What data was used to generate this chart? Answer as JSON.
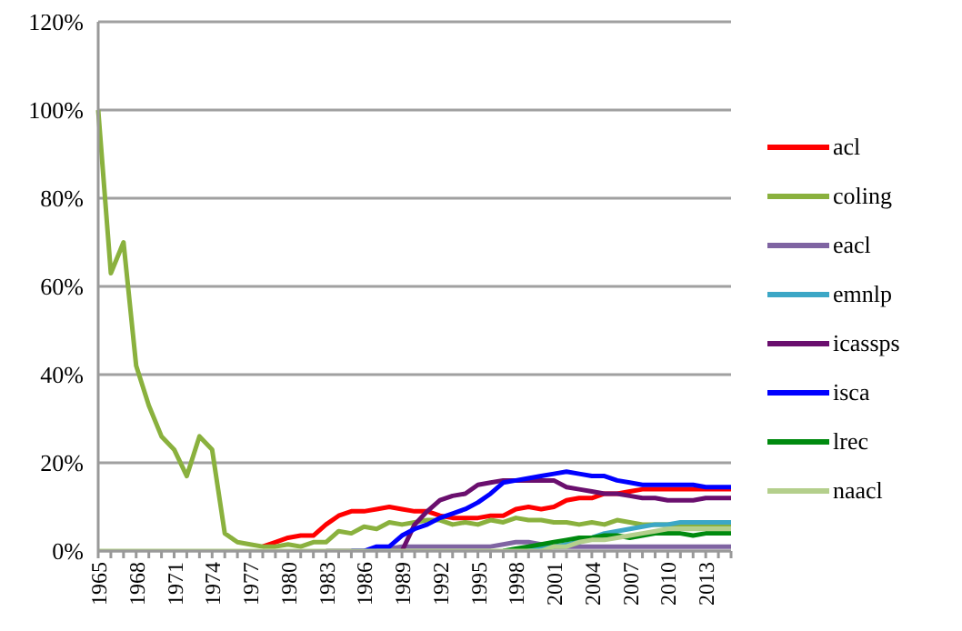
{
  "chart_data": {
    "type": "line",
    "categories": [
      "1965",
      null,
      null,
      "1968",
      null,
      null,
      "1971",
      null,
      null,
      "1974",
      null,
      null,
      "1977",
      null,
      null,
      "1980",
      null,
      null,
      "1983",
      null,
      null,
      "1986",
      null,
      null,
      "1989",
      null,
      null,
      "1992",
      null,
      null,
      "1995",
      null,
      null,
      "1998",
      null,
      null,
      "2001",
      null,
      null,
      "2004",
      null,
      null,
      "2007",
      null,
      null,
      "2010",
      null,
      null,
      "2013",
      null,
      null
    ],
    "ylim": [
      0,
      1.2
    ],
    "yticks": [
      {
        "value": 0,
        "label": "0%"
      },
      {
        "value": 0.2,
        "label": "20%"
      },
      {
        "value": 0.4,
        "label": "40%"
      },
      {
        "value": 0.6,
        "label": "60%"
      },
      {
        "value": 0.8,
        "label": "80%"
      },
      {
        "value": 1,
        "label": "100%"
      },
      {
        "value": 1.2,
        "label": "120%"
      }
    ],
    "grid": "y",
    "legend": "right",
    "series": [
      {
        "name": "acl",
        "color": "#ff0000",
        "values": [
          null,
          null,
          null,
          null,
          null,
          null,
          null,
          null,
          null,
          null,
          null,
          null,
          null,
          0.01,
          0.02,
          0.03,
          0.035,
          0.035,
          0.06,
          0.08,
          0.09,
          0.09,
          0.095,
          0.1,
          0.095,
          0.09,
          0.09,
          0.08,
          0.075,
          0.075,
          0.075,
          0.08,
          0.08,
          0.095,
          0.1,
          0.095,
          0.1,
          0.115,
          0.12,
          0.12,
          0.13,
          0.13,
          0.135,
          0.14,
          0.14,
          0.14,
          0.14,
          0.14,
          0.14,
          0.14,
          0.14
        ]
      },
      {
        "name": "coling",
        "color": "#8ab13e",
        "values": [
          1,
          0.63,
          0.7,
          0.42,
          0.33,
          0.26,
          0.23,
          0.17,
          0.26,
          0.23,
          0.04,
          0.02,
          0.015,
          0.01,
          0.01,
          0.015,
          0.01,
          0.02,
          0.02,
          0.045,
          0.04,
          0.055,
          0.05,
          0.065,
          0.06,
          0.065,
          0.07,
          0.07,
          0.06,
          0.065,
          0.06,
          0.07,
          0.065,
          0.075,
          0.07,
          0.07,
          0.065,
          0.065,
          0.06,
          0.065,
          0.06,
          0.07,
          0.065,
          0.06,
          0.06,
          0.06,
          0.06,
          0.06,
          0.06,
          0.06,
          0.06
        ]
      },
      {
        "name": "eacl",
        "color": "#7f64a2",
        "values": [
          null,
          null,
          null,
          null,
          null,
          null,
          null,
          null,
          null,
          null,
          null,
          null,
          null,
          null,
          null,
          null,
          null,
          null,
          0,
          0,
          0,
          0,
          0.005,
          0.005,
          0.01,
          0.01,
          0.01,
          0.01,
          0.01,
          0.01,
          0.01,
          0.01,
          0.015,
          0.02,
          0.02,
          0.015,
          0.01,
          0.01,
          0.01,
          0.01,
          0.01,
          0.01,
          0.01,
          0.01,
          0.01,
          0.01,
          0.01,
          0.01,
          0.01,
          0.01,
          0.01
        ]
      },
      {
        "name": "emnlp",
        "color": "#3ca7c6",
        "values": [
          null,
          null,
          null,
          null,
          null,
          null,
          null,
          null,
          null,
          null,
          null,
          null,
          null,
          null,
          null,
          null,
          null,
          null,
          null,
          null,
          null,
          null,
          null,
          null,
          null,
          null,
          null,
          null,
          null,
          null,
          null,
          null,
          null,
          0.005,
          0.005,
          0.01,
          0.01,
          0.015,
          0.02,
          0.03,
          0.04,
          0.045,
          0.05,
          0.055,
          0.06,
          0.06,
          0.065,
          0.065,
          0.065,
          0.065,
          0.065
        ]
      },
      {
        "name": "icassps",
        "color": "#6a0f6e",
        "values": [
          null,
          null,
          null,
          null,
          null,
          null,
          null,
          null,
          null,
          null,
          null,
          null,
          null,
          null,
          null,
          null,
          null,
          null,
          null,
          null,
          null,
          null,
          null,
          null,
          0,
          0.06,
          0.09,
          0.115,
          0.125,
          0.13,
          0.15,
          0.155,
          0.16,
          0.16,
          0.16,
          0.16,
          0.16,
          0.145,
          0.14,
          0.135,
          0.13,
          0.13,
          0.125,
          0.12,
          0.12,
          0.115,
          0.115,
          0.115,
          0.12,
          0.12,
          0.12
        ]
      },
      {
        "name": "isca",
        "color": "#0000ff",
        "values": [
          null,
          null,
          null,
          null,
          null,
          null,
          null,
          null,
          null,
          null,
          null,
          null,
          null,
          null,
          null,
          null,
          null,
          null,
          null,
          null,
          0,
          0,
          0.01,
          0.01,
          0.035,
          0.05,
          0.06,
          0.075,
          0.085,
          0.095,
          0.11,
          0.13,
          0.155,
          0.16,
          0.165,
          0.17,
          0.175,
          0.18,
          0.175,
          0.17,
          0.17,
          0.16,
          0.155,
          0.15,
          0.15,
          0.15,
          0.15,
          0.15,
          0.145,
          0.145,
          0.145
        ]
      },
      {
        "name": "lrec",
        "color": "#008a0f",
        "values": [
          null,
          null,
          null,
          null,
          null,
          null,
          null,
          null,
          null,
          null,
          null,
          null,
          null,
          null,
          null,
          null,
          null,
          null,
          null,
          null,
          null,
          null,
          null,
          null,
          null,
          null,
          null,
          null,
          null,
          null,
          null,
          null,
          0,
          0.005,
          0.01,
          0.015,
          0.02,
          0.025,
          0.03,
          0.03,
          0.035,
          0.035,
          0.03,
          0.035,
          0.04,
          0.04,
          0.04,
          0.035,
          0.04,
          0.04,
          0.04
        ]
      },
      {
        "name": "naacl",
        "color": "#b4cf8c",
        "values": [
          0,
          0,
          0,
          0,
          0,
          0,
          0,
          0,
          0,
          0,
          0,
          0,
          0,
          0,
          0,
          0,
          0,
          0,
          0,
          0,
          0,
          0,
          0,
          0,
          0,
          0,
          0,
          0,
          0,
          0,
          0,
          0,
          0,
          0,
          0,
          0,
          0.01,
          0.01,
          0.02,
          0.025,
          0.025,
          0.03,
          0.035,
          0.04,
          0.045,
          0.05,
          0.05,
          0.05,
          0.05,
          0.05,
          0.05
        ]
      }
    ]
  }
}
